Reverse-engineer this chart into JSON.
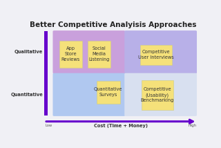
{
  "title": "Better Competitive Analyisis Approaches",
  "title_fontsize": 7.5,
  "title_fontweight": "bold",
  "title_color": "#222222",
  "bg_color": "#f0f0f5",
  "q_colors": [
    "#c9a0dc",
    "#b8b0e8",
    "#b0c8f0",
    "#d8e0f0"
  ],
  "sticky_notes": [
    {
      "text": "App\nStore\nReviews",
      "color": "#f5e17a",
      "fontsize": 4.8
    },
    {
      "text": "Social\nMedia\nListening",
      "color": "#f5e17a",
      "fontsize": 4.8
    },
    {
      "text": "Competitive\nUser Interviews",
      "color": "#f5e17a",
      "fontsize": 4.8
    },
    {
      "text": "Quantitative\nSurveys",
      "color": "#f5e17a",
      "fontsize": 4.8
    },
    {
      "text": "Competitive\n(Usability)\nBenchmarking",
      "color": "#f5e17a",
      "fontsize": 4.8
    }
  ],
  "y_label_qualitative": "Qualitative",
  "y_label_quantitative": "Quantitative",
  "x_label": "Cost (Time + Money)",
  "x_low": "Low",
  "x_high": "High",
  "label_fontsize": 4.8,
  "arrow_color": "#6600cc",
  "bar_color": "#6600cc"
}
